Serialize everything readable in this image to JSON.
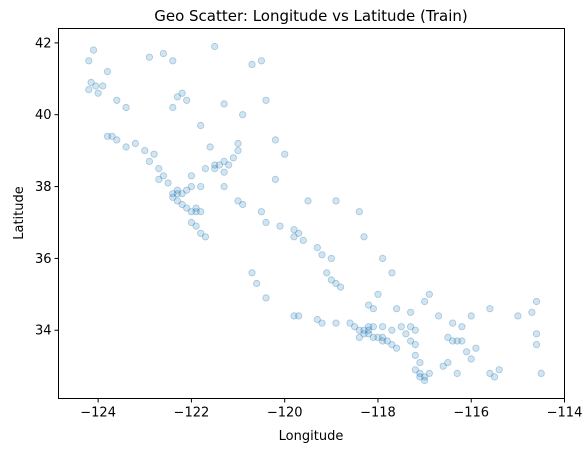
{
  "chart_data": {
    "type": "scatter",
    "title": "Geo Scatter: Longitude vs Latitude (Train)",
    "xlabel": "Longitude",
    "ylabel": "Latitude",
    "xlim": [
      -124.85,
      -114.0
    ],
    "ylim": [
      32.1,
      42.4
    ],
    "xticks": [
      -124,
      -122,
      -120,
      -118,
      -116,
      -114
    ],
    "yticks": [
      34,
      36,
      38,
      40,
      42
    ],
    "xtick_labels": [
      "−124",
      "−122",
      "−120",
      "−118",
      "−116",
      "−114"
    ],
    "ytick_labels": [
      "34",
      "36",
      "38",
      "40",
      "42"
    ],
    "grid": false,
    "legend": "none",
    "marker_color": "#1f77b4",
    "marker_opacity": 0.2,
    "points": [
      [
        -124.1,
        41.8
      ],
      [
        -124.2,
        41.5
      ],
      [
        -124.15,
        40.9
      ],
      [
        -124.05,
        40.8
      ],
      [
        -124.0,
        40.6
      ],
      [
        -124.2,
        40.7
      ],
      [
        -123.8,
        41.2
      ],
      [
        -123.9,
        40.8
      ],
      [
        -123.6,
        40.4
      ],
      [
        -123.4,
        40.2
      ],
      [
        -123.7,
        39.4
      ],
      [
        -123.8,
        39.4
      ],
      [
        -123.6,
        39.3
      ],
      [
        -123.4,
        39.1
      ],
      [
        -123.2,
        39.2
      ],
      [
        -123.0,
        39.0
      ],
      [
        -122.8,
        38.9
      ],
      [
        -122.9,
        38.7
      ],
      [
        -122.7,
        38.5
      ],
      [
        -122.6,
        38.3
      ],
      [
        -122.5,
        38.1
      ],
      [
        -122.7,
        38.2
      ],
      [
        -122.4,
        37.8
      ],
      [
        -122.3,
        37.8
      ],
      [
        -122.2,
        37.8
      ],
      [
        -122.4,
        37.7
      ],
      [
        -122.3,
        37.6
      ],
      [
        -122.2,
        37.5
      ],
      [
        -122.1,
        37.4
      ],
      [
        -122.0,
        37.3
      ],
      [
        -121.9,
        37.4
      ],
      [
        -121.9,
        37.3
      ],
      [
        -121.8,
        37.3
      ],
      [
        -122.0,
        37.0
      ],
      [
        -121.9,
        36.9
      ],
      [
        -121.8,
        36.7
      ],
      [
        -121.7,
        36.6
      ],
      [
        -122.3,
        37.9
      ],
      [
        -122.1,
        37.9
      ],
      [
        -122.0,
        38.0
      ],
      [
        -121.8,
        38.0
      ],
      [
        -121.5,
        38.6
      ],
      [
        -121.4,
        38.6
      ],
      [
        -121.3,
        38.7
      ],
      [
        -121.2,
        38.6
      ],
      [
        -121.5,
        38.5
      ],
      [
        -121.3,
        38.4
      ],
      [
        -121.1,
        38.8
      ],
      [
        -121.0,
        39.0
      ],
      [
        -121.6,
        39.1
      ],
      [
        -121.8,
        39.7
      ],
      [
        -122.2,
        40.6
      ],
      [
        -122.3,
        40.5
      ],
      [
        -122.1,
        40.4
      ],
      [
        -122.4,
        40.2
      ],
      [
        -121.3,
        38.0
      ],
      [
        -121.0,
        37.6
      ],
      [
        -120.9,
        37.5
      ],
      [
        -120.5,
        37.3
      ],
      [
        -120.4,
        37.0
      ],
      [
        -120.1,
        36.9
      ],
      [
        -119.8,
        36.8
      ],
      [
        -119.7,
        36.7
      ],
      [
        -119.8,
        36.6
      ],
      [
        -119.6,
        36.5
      ],
      [
        -119.3,
        36.3
      ],
      [
        -119.2,
        36.1
      ],
      [
        -119.0,
        36.0
      ],
      [
        -119.1,
        35.6
      ],
      [
        -119.0,
        35.4
      ],
      [
        -118.9,
        35.3
      ],
      [
        -118.8,
        35.2
      ],
      [
        -120.6,
        35.3
      ],
      [
        -120.7,
        35.6
      ],
      [
        -120.4,
        34.9
      ],
      [
        -119.7,
        34.4
      ],
      [
        -119.8,
        34.4
      ],
      [
        -119.3,
        34.3
      ],
      [
        -119.2,
        34.2
      ],
      [
        -118.9,
        34.2
      ],
      [
        -118.6,
        34.2
      ],
      [
        -118.5,
        34.1
      ],
      [
        -118.4,
        34.0
      ],
      [
        -118.3,
        34.0
      ],
      [
        -118.2,
        34.0
      ],
      [
        -118.3,
        33.9
      ],
      [
        -118.2,
        33.9
      ],
      [
        -118.1,
        33.8
      ],
      [
        -118.0,
        33.8
      ],
      [
        -117.9,
        33.8
      ],
      [
        -117.9,
        33.7
      ],
      [
        -117.8,
        33.7
      ],
      [
        -117.7,
        33.6
      ],
      [
        -117.6,
        33.5
      ],
      [
        -118.4,
        33.8
      ],
      [
        -118.2,
        34.1
      ],
      [
        -118.1,
        34.1
      ],
      [
        -117.9,
        34.1
      ],
      [
        -117.7,
        34.0
      ],
      [
        -117.5,
        34.1
      ],
      [
        -117.3,
        34.1
      ],
      [
        -117.2,
        34.0
      ],
      [
        -117.4,
        33.9
      ],
      [
        -117.3,
        33.7
      ],
      [
        -117.2,
        33.6
      ],
      [
        -117.2,
        33.3
      ],
      [
        -117.1,
        33.1
      ],
      [
        -117.2,
        32.9
      ],
      [
        -117.1,
        32.8
      ],
      [
        -117.1,
        32.7
      ],
      [
        -117.0,
        32.7
      ],
      [
        -116.9,
        32.8
      ],
      [
        -117.0,
        32.6
      ],
      [
        -116.5,
        33.8
      ],
      [
        -116.4,
        33.7
      ],
      [
        -116.3,
        33.7
      ],
      [
        -116.2,
        33.7
      ],
      [
        -115.6,
        32.8
      ],
      [
        -115.5,
        32.7
      ],
      [
        -115.4,
        32.9
      ],
      [
        -114.6,
        33.6
      ],
      [
        -114.6,
        34.8
      ],
      [
        -114.5,
        32.8
      ],
      [
        -117.0,
        34.8
      ],
      [
        -117.3,
        34.5
      ],
      [
        -117.6,
        34.6
      ],
      [
        -118.1,
        34.6
      ],
      [
        -118.2,
        34.7
      ],
      [
        -117.7,
        35.6
      ],
      [
        -118.0,
        35.0
      ],
      [
        -116.4,
        34.2
      ],
      [
        -116.2,
        34.1
      ],
      [
        -116.0,
        34.4
      ],
      [
        -120.4,
        40.4
      ],
      [
        -120.9,
        40.0
      ],
      [
        -121.0,
        39.2
      ],
      [
        -120.2,
        39.3
      ],
      [
        -120.0,
        38.9
      ],
      [
        -121.7,
        38.5
      ],
      [
        -122.0,
        38.3
      ],
      [
        -122.9,
        41.6
      ],
      [
        -122.6,
        41.7
      ],
      [
        -122.4,
        41.5
      ],
      [
        -121.5,
        41.9
      ],
      [
        -120.5,
        41.5
      ],
      [
        -120.7,
        41.4
      ],
      [
        -121.3,
        40.3
      ],
      [
        -120.2,
        38.2
      ],
      [
        -119.5,
        37.6
      ],
      [
        -118.9,
        37.6
      ],
      [
        -118.4,
        37.3
      ],
      [
        -118.3,
        36.6
      ],
      [
        -117.9,
        36.0
      ],
      [
        -116.9,
        35.0
      ],
      [
        -116.7,
        34.4
      ],
      [
        -115.6,
        34.6
      ],
      [
        -115.0,
        34.4
      ],
      [
        -114.7,
        34.5
      ],
      [
        -114.6,
        33.9
      ],
      [
        -116.0,
        33.2
      ],
      [
        -116.5,
        33.1
      ],
      [
        -116.3,
        32.8
      ],
      [
        -116.6,
        33.0
      ],
      [
        -116.1,
        33.4
      ],
      [
        -115.9,
        33.5
      ]
    ]
  }
}
